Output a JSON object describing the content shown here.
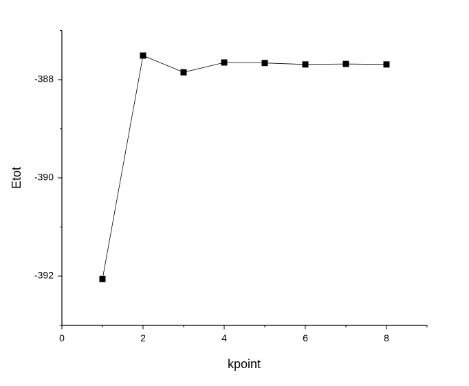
{
  "chart_data": {
    "type": "line",
    "x_label": "kpoint",
    "y_label": "Etot",
    "x": [
      1,
      2,
      3,
      4,
      5,
      6,
      7,
      8
    ],
    "series": [
      {
        "color": "#000000",
        "values": [
          -392.06,
          -387.51,
          -387.85,
          -387.65,
          -387.66,
          -387.69,
          -387.68,
          -387.69
        ]
      }
    ],
    "xlim": [
      0,
      9
    ],
    "xticks": [
      0,
      2,
      4,
      6,
      8
    ],
    "xminorticks": [
      1,
      3,
      5,
      7,
      9
    ],
    "ylim": [
      -393,
      -387
    ],
    "yticks": [
      -392,
      -390,
      -388
    ],
    "yminorticks": [
      -393,
      -391,
      -389,
      -387
    ]
  }
}
